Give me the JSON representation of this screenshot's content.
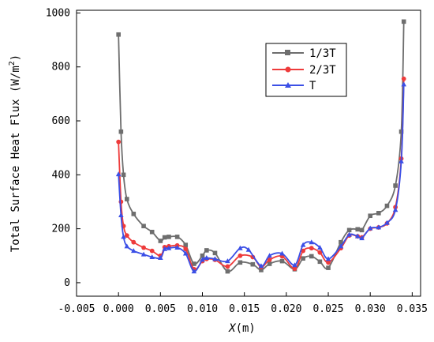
{
  "chart_data": {
    "type": "line",
    "xlabel": "X(m)",
    "xlabel_prefix": "X",
    "xlabel_unit": "(m)",
    "ylabel": "Total Surface Heat Flux (W/m²)",
    "ylabel_text": "Total Surface Heat Flux (W/m",
    "ylabel_sup": "2",
    "ylabel_close": ")",
    "xlim": [
      -0.005,
      0.036
    ],
    "ylim": [
      -50,
      1010
    ],
    "xticks": [
      -0.005,
      0.0,
      0.005,
      0.01,
      0.015,
      0.02,
      0.025,
      0.03,
      0.035
    ],
    "xtick_labels": [
      "-0.005",
      "0.000",
      "0.005",
      "0.010",
      "0.015",
      "0.020",
      "0.025",
      "0.030",
      "0.035"
    ],
    "yticks": [
      0,
      200,
      400,
      600,
      800,
      1000
    ],
    "ytick_labels": [
      "0",
      "200",
      "400",
      "600",
      "800",
      "1000"
    ],
    "grid": false,
    "legend_position": "top-right",
    "series": [
      {
        "name": "1/3T",
        "color": "#6e6e6e",
        "marker": "square",
        "points": [
          [
            0.0,
            920
          ],
          [
            0.0003,
            560
          ],
          [
            0.0006,
            400
          ],
          [
            0.001,
            310
          ],
          [
            0.0018,
            255
          ],
          [
            0.003,
            210
          ],
          [
            0.004,
            188
          ],
          [
            0.005,
            155
          ],
          [
            0.0055,
            168
          ],
          [
            0.006,
            170
          ],
          [
            0.007,
            170
          ],
          [
            0.008,
            140
          ],
          [
            0.009,
            70
          ],
          [
            0.01,
            100
          ],
          [
            0.0105,
            120
          ],
          [
            0.0115,
            110
          ],
          [
            0.013,
            42
          ],
          [
            0.0145,
            75
          ],
          [
            0.016,
            68
          ],
          [
            0.017,
            47
          ],
          [
            0.018,
            70
          ],
          [
            0.0195,
            80
          ],
          [
            0.021,
            50
          ],
          [
            0.022,
            90
          ],
          [
            0.023,
            98
          ],
          [
            0.024,
            78
          ],
          [
            0.025,
            55
          ],
          [
            0.0265,
            150
          ],
          [
            0.0275,
            195
          ],
          [
            0.0285,
            198
          ],
          [
            0.029,
            195
          ],
          [
            0.03,
            248
          ],
          [
            0.031,
            258
          ],
          [
            0.032,
            285
          ],
          [
            0.033,
            360
          ],
          [
            0.0337,
            560
          ],
          [
            0.034,
            968
          ]
        ]
      },
      {
        "name": "2/3T",
        "color": "#ee3b3b",
        "marker": "circle",
        "points": [
          [
            0.0,
            522
          ],
          [
            0.0003,
            300
          ],
          [
            0.0006,
            210
          ],
          [
            0.001,
            175
          ],
          [
            0.0018,
            150
          ],
          [
            0.003,
            130
          ],
          [
            0.004,
            118
          ],
          [
            0.005,
            100
          ],
          [
            0.0055,
            132
          ],
          [
            0.006,
            135
          ],
          [
            0.007,
            138
          ],
          [
            0.008,
            125
          ],
          [
            0.009,
            50
          ],
          [
            0.01,
            80
          ],
          [
            0.0105,
            88
          ],
          [
            0.0115,
            85
          ],
          [
            0.013,
            60
          ],
          [
            0.0145,
            100
          ],
          [
            0.016,
            95
          ],
          [
            0.017,
            58
          ],
          [
            0.018,
            85
          ],
          [
            0.0195,
            98
          ],
          [
            0.021,
            52
          ],
          [
            0.022,
            118
          ],
          [
            0.023,
            128
          ],
          [
            0.024,
            112
          ],
          [
            0.025,
            75
          ],
          [
            0.0265,
            128
          ],
          [
            0.0275,
            175
          ],
          [
            0.0285,
            172
          ],
          [
            0.029,
            168
          ],
          [
            0.03,
            200
          ],
          [
            0.031,
            205
          ],
          [
            0.032,
            220
          ],
          [
            0.033,
            280
          ],
          [
            0.0337,
            460
          ],
          [
            0.034,
            756
          ]
        ]
      },
      {
        "name": "T",
        "color": "#3b4fe6",
        "marker": "triangle",
        "points": [
          [
            0.0,
            402
          ],
          [
            0.0003,
            250
          ],
          [
            0.0006,
            170
          ],
          [
            0.001,
            135
          ],
          [
            0.0018,
            118
          ],
          [
            0.003,
            105
          ],
          [
            0.004,
            95
          ],
          [
            0.005,
            92
          ],
          [
            0.0055,
            125
          ],
          [
            0.006,
            128
          ],
          [
            0.007,
            130
          ],
          [
            0.008,
            108
          ],
          [
            0.009,
            42
          ],
          [
            0.01,
            85
          ],
          [
            0.0105,
            92
          ],
          [
            0.0115,
            88
          ],
          [
            0.013,
            80
          ],
          [
            0.0145,
            128
          ],
          [
            0.0155,
            122
          ],
          [
            0.017,
            62
          ],
          [
            0.018,
            100
          ],
          [
            0.0195,
            108
          ],
          [
            0.021,
            65
          ],
          [
            0.022,
            140
          ],
          [
            0.023,
            150
          ],
          [
            0.024,
            130
          ],
          [
            0.025,
            88
          ],
          [
            0.0265,
            135
          ],
          [
            0.0275,
            178
          ],
          [
            0.0285,
            172
          ],
          [
            0.029,
            165
          ],
          [
            0.03,
            202
          ],
          [
            0.031,
            205
          ],
          [
            0.032,
            222
          ],
          [
            0.033,
            270
          ],
          [
            0.0337,
            450
          ],
          [
            0.034,
            735
          ]
        ]
      }
    ]
  }
}
